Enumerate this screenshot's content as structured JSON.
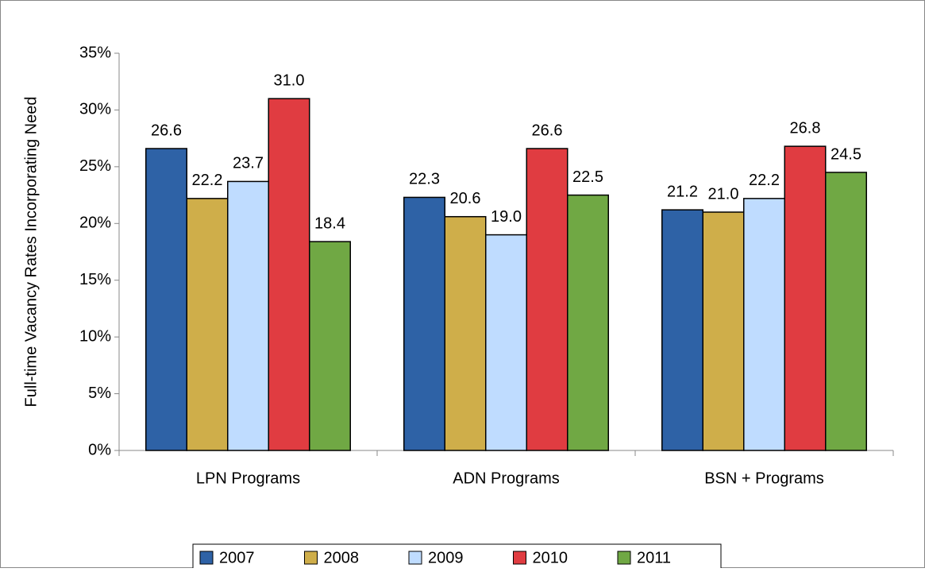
{
  "chart_data": {
    "type": "bar",
    "y_label": "Full-time Vacancy Rates Incorporating Need",
    "categories": [
      "LPN Programs",
      "ADN Programs",
      "BSN + Programs"
    ],
    "series": [
      {
        "name": "2007",
        "color": "#2e62a6",
        "values": [
          26.6,
          22.3,
          21.2
        ],
        "value_labels": [
          "26.6",
          "22.3",
          "21.2"
        ]
      },
      {
        "name": "2008",
        "color": "#cfae4a",
        "values": [
          22.2,
          20.6,
          21.0
        ],
        "value_labels": [
          "22.2",
          "20.6",
          "21.0"
        ]
      },
      {
        "name": "2009",
        "color": "#bfdcff",
        "values": [
          23.7,
          19.0,
          22.2
        ],
        "value_labels": [
          "23.7",
          "19.0",
          "22.2"
        ]
      },
      {
        "name": "2010",
        "color": "#e03c41",
        "values": [
          31.0,
          26.6,
          26.8
        ],
        "value_labels": [
          "31.0",
          "26.6",
          "26.8"
        ]
      },
      {
        "name": "2011",
        "color": "#70a844",
        "values": [
          18.4,
          22.5,
          24.5
        ],
        "value_labels": [
          "18.4",
          "22.5",
          "24.5"
        ]
      }
    ],
    "ylim": [
      0,
      35
    ],
    "yticks": [
      {
        "value": 0,
        "label": "0%"
      },
      {
        "value": 5,
        "label": "5%"
      },
      {
        "value": 10,
        "label": "10%"
      },
      {
        "value": 15,
        "label": "15%"
      },
      {
        "value": 20,
        "label": "20%"
      },
      {
        "value": 25,
        "label": "25%"
      },
      {
        "value": 30,
        "label": "30%"
      },
      {
        "value": 35,
        "label": "35%"
      }
    ],
    "legend": "bottom"
  }
}
